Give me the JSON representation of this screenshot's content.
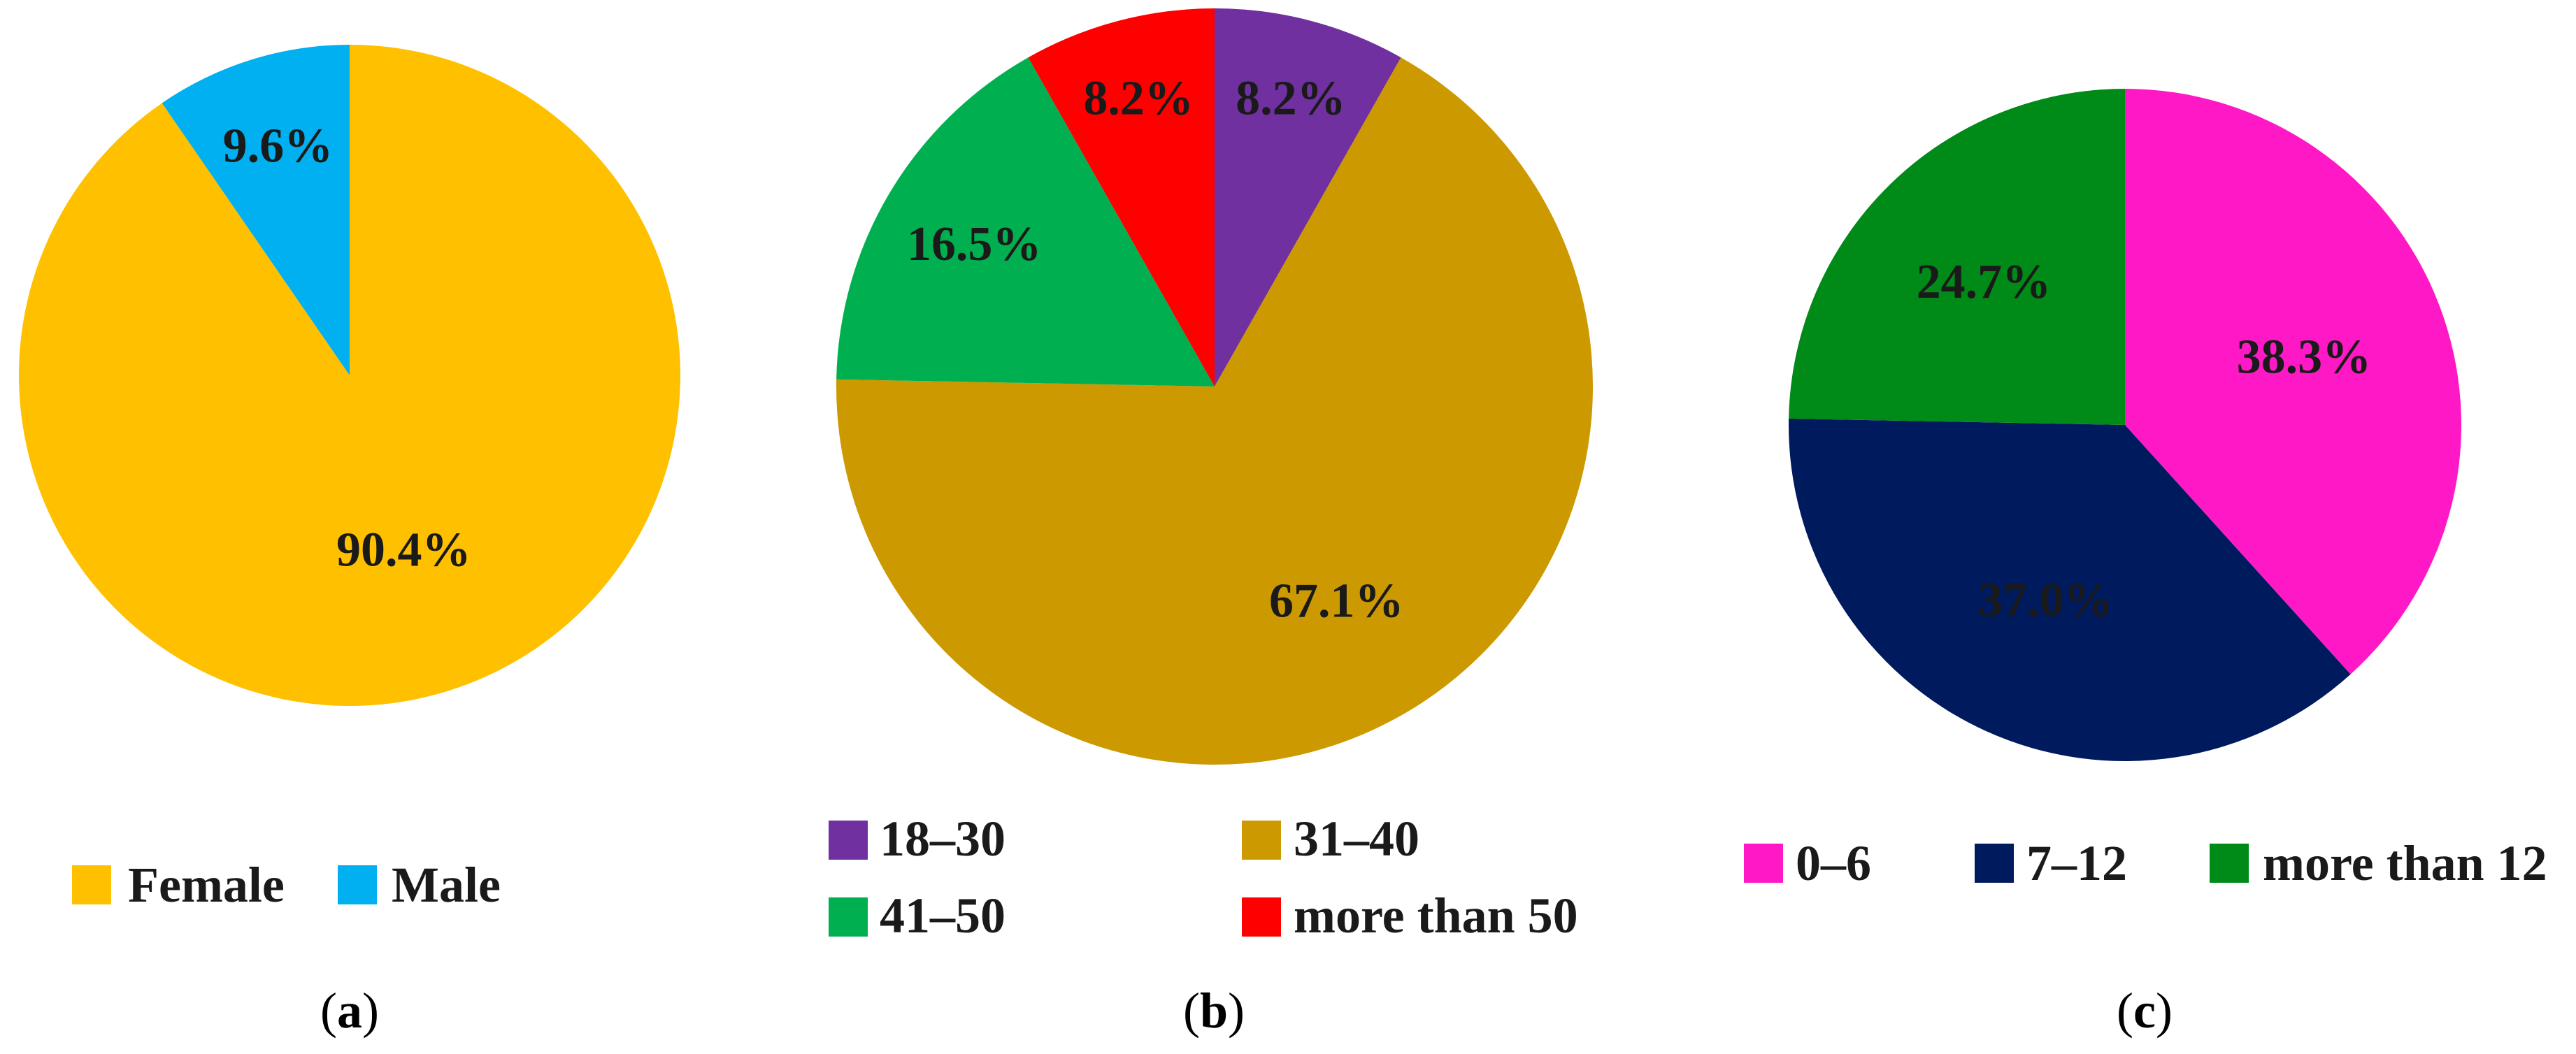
{
  "chart_data": [
    {
      "type": "pie",
      "panel": "a",
      "categories": [
        "Female",
        "Male"
      ],
      "values": [
        90.4,
        9.6
      ],
      "labels": [
        "90.4%",
        "9.6%"
      ],
      "colors": [
        "#FFC000",
        "#00B0F0"
      ],
      "legend_position": "bottom"
    },
    {
      "type": "pie",
      "panel": "b",
      "categories": [
        "18–30",
        "31–40",
        "41–50",
        "more than 50"
      ],
      "values": [
        8.2,
        67.1,
        16.5,
        8.2
      ],
      "labels": [
        "8.2%",
        "67.1%",
        "16.5%",
        "8.2%"
      ],
      "colors": [
        "#7030A0",
        "#CC9900",
        "#00B050",
        "#FF0000"
      ],
      "legend_position": "bottom"
    },
    {
      "type": "pie",
      "panel": "c",
      "categories": [
        "0–6",
        "7–12",
        "more than 12"
      ],
      "values": [
        38.3,
        37.0,
        24.7
      ],
      "labels": [
        "38.3%",
        "37.0%",
        "24.7%"
      ],
      "colors": [
        "#FF19C6",
        "#001A5E",
        "#008A18"
      ],
      "legend_position": "bottom"
    }
  ],
  "captions": [
    {
      "open": "(",
      "letter": "a",
      "close": ")"
    },
    {
      "open": "(",
      "letter": "b",
      "close": ")"
    },
    {
      "open": "(",
      "letter": "c",
      "close": ")"
    }
  ]
}
